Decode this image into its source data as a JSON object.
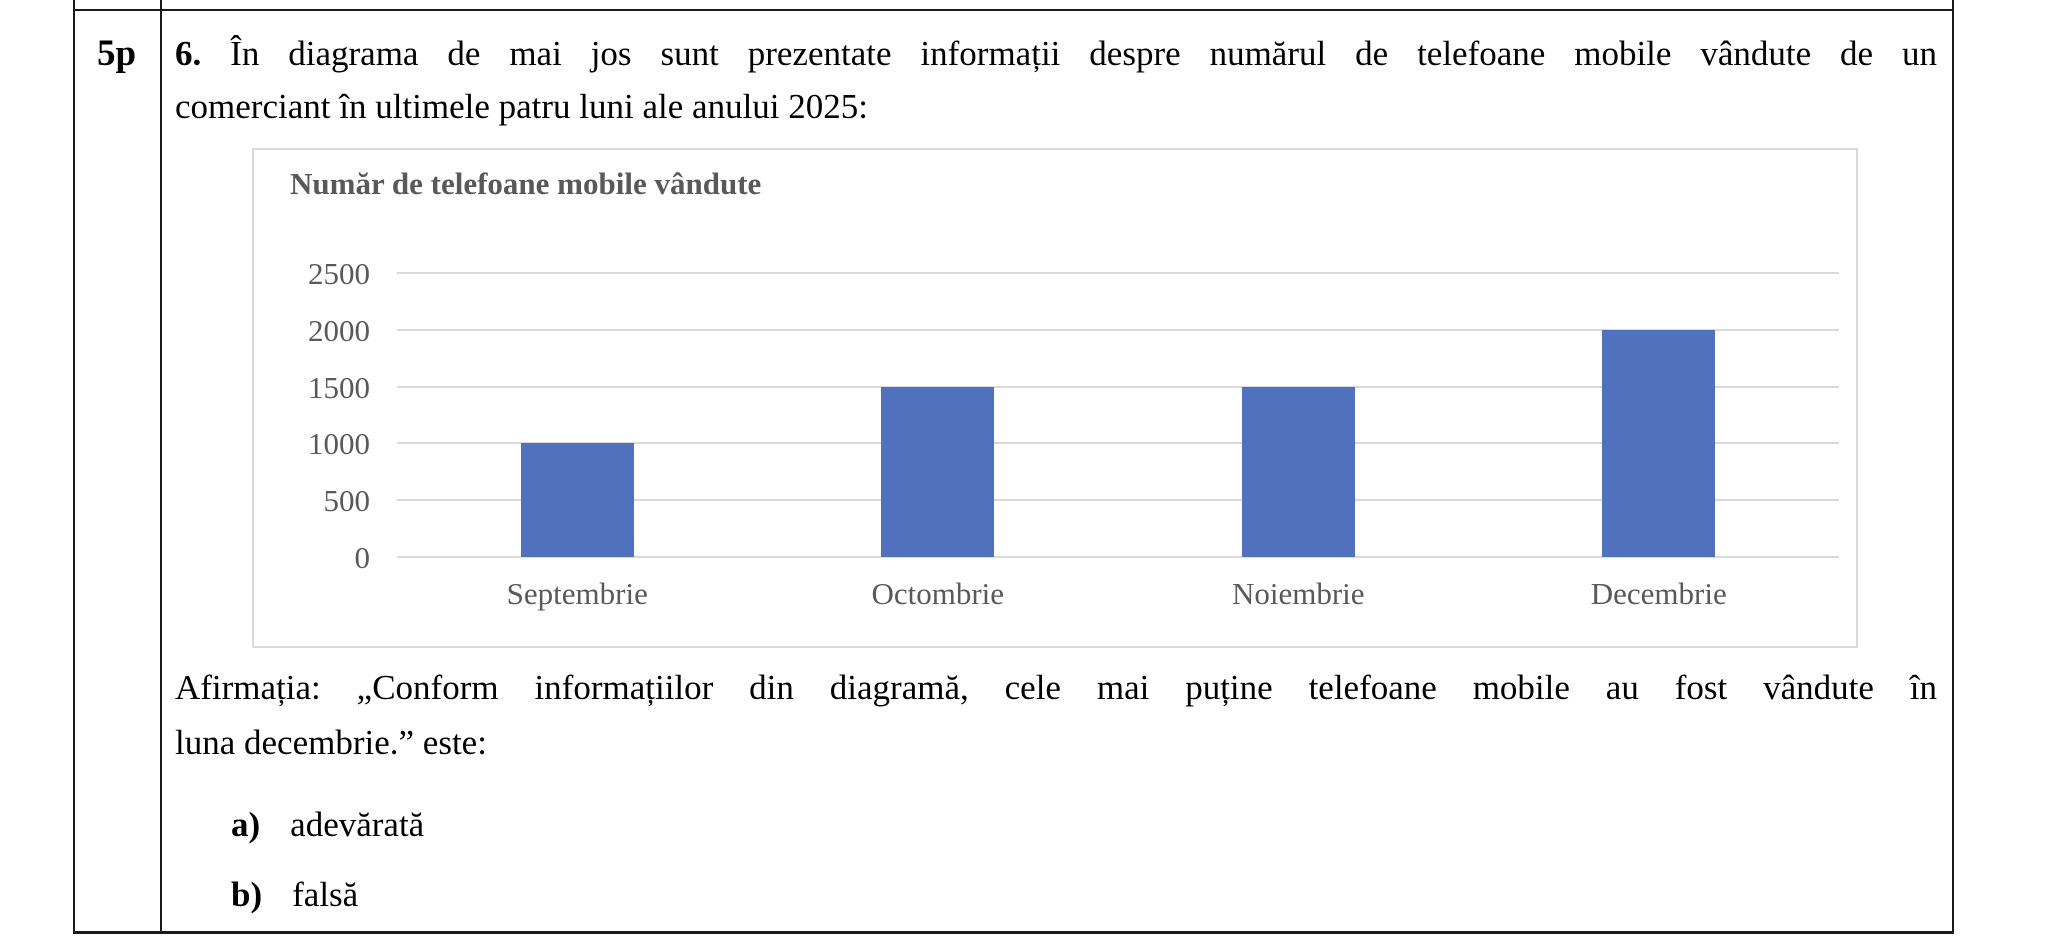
{
  "points_cell": {
    "label": "5p"
  },
  "question": {
    "number": "6.",
    "line1_rest": "În diagrama de mai jos sunt prezentate informații despre numărul de telefoane mobile vândute de un",
    "line2": "comerciant în ultimele patru luni ale anului 2025:"
  },
  "statement": {
    "line1": "Afirmația: „Conform informațiilor din diagramă, cele mai puține telefoane mobile au fost vândute în",
    "line2": "luna decembrie.” este:"
  },
  "options": [
    {
      "key": "a)",
      "label": "adevărată"
    },
    {
      "key": "b)",
      "label": "falsă"
    }
  ],
  "chart_data": {
    "type": "bar",
    "title": "Număr de telefoane mobile vândute",
    "categories": [
      "Septembrie",
      "Octombrie",
      "Noiembrie",
      "Decembrie"
    ],
    "values": [
      1000,
      1500,
      1500,
      2000
    ],
    "xlabel": "",
    "ylabel": "",
    "ylim": [
      0,
      2500
    ],
    "yticks": [
      0,
      500,
      1000,
      1500,
      2000,
      2500
    ],
    "grid": true,
    "legend": "none",
    "bar_color": "#4f71be",
    "axis_text_color": "#595959",
    "gridline_color": "#d9d9d9"
  }
}
